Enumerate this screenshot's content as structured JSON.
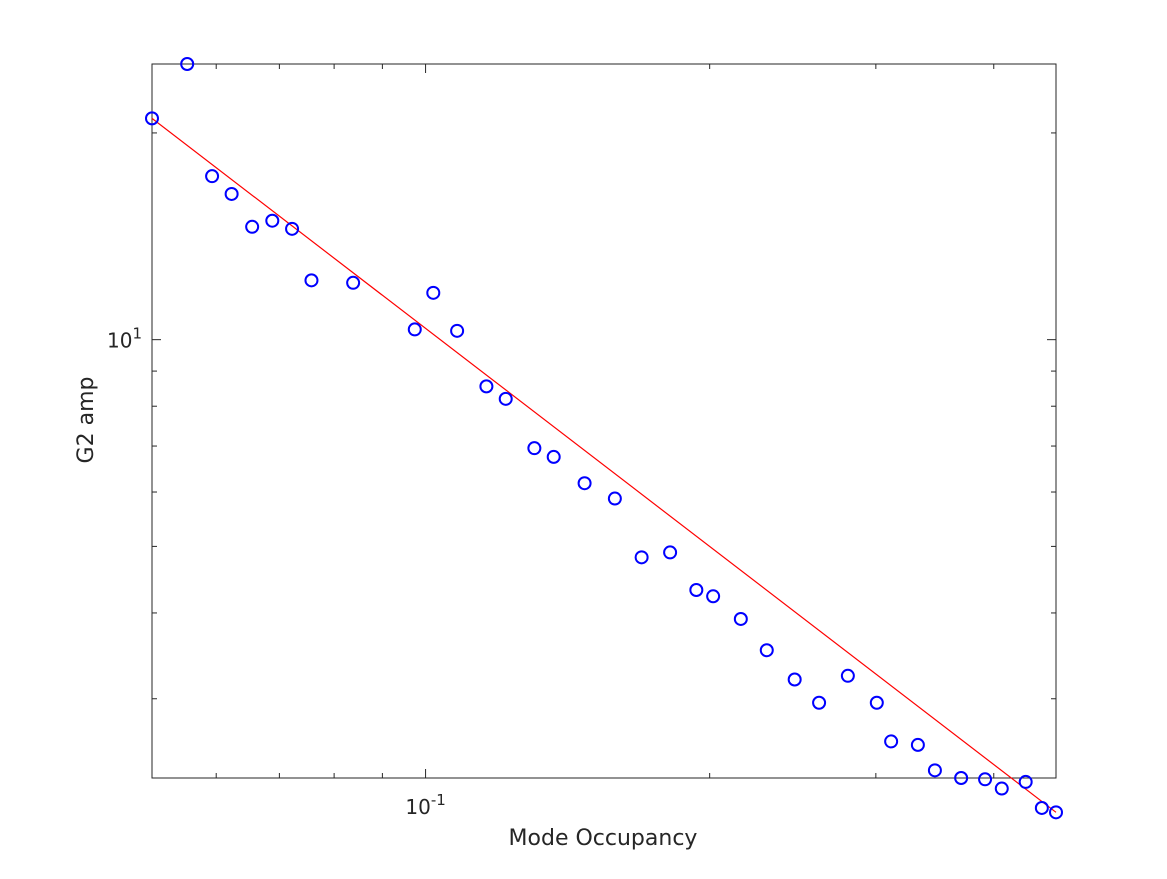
{
  "colors": {
    "series_circles": "#0000ff",
    "series_crosses": "#000000",
    "fit_line": "#ff0000",
    "axes": "#262626"
  },
  "chart_data": {
    "type": "scatter",
    "title": "",
    "xlabel": "Mode Occupancy",
    "ylabel": "G2 amp",
    "xscale": "log",
    "yscale": "log",
    "xlim": [
      0.0513,
      0.4656
    ],
    "ylim": [
      2.3,
      25.2
    ],
    "grid": false,
    "box": true,
    "x_tick_labels": [
      {
        "value": 0.1,
        "base": "10",
        "exp": "-1"
      }
    ],
    "y_tick_labels": [
      {
        "value": 10,
        "base": "10",
        "exp": "1"
      }
    ],
    "x_minor_ticks": [
      0.06,
      0.07,
      0.08,
      0.09,
      0.2,
      0.3,
      0.4
    ],
    "y_minor_ticks": [
      3,
      4,
      5,
      6,
      7,
      8,
      9,
      20
    ],
    "series": [
      {
        "marker": "circle",
        "x": [
          0.0513,
          0.0559,
          0.0594,
          0.0623,
          0.0655,
          0.0688,
          0.0722,
          0.0757,
          0.0838,
          0.0974,
          0.1019,
          0.108,
          0.116,
          0.1216,
          0.1304,
          0.1367,
          0.1474,
          0.1587,
          0.1694,
          0.1816,
          0.1936,
          0.2017,
          0.2158,
          0.2299,
          0.2461,
          0.2612,
          0.2802,
          0.3007,
          0.3114,
          0.3324,
          0.3465,
          0.3694,
          0.3916,
          0.4079,
          0.4324,
          0.4498,
          0.4656
        ],
        "y": [
          21.0,
          25.2,
          17.3,
          16.3,
          14.6,
          14.9,
          14.5,
          12.2,
          12.1,
          10.35,
          11.7,
          10.3,
          8.55,
          8.2,
          6.95,
          6.75,
          6.18,
          5.87,
          4.82,
          4.9,
          4.32,
          4.23,
          3.92,
          3.53,
          3.2,
          2.96,
          3.24,
          2.96,
          2.6,
          2.57,
          2.36,
          2.3,
          2.29,
          2.22,
          2.27,
          2.08,
          2.05
        ],
        "note": "y values follow the printed ticks"
      }
    ]
  }
}
